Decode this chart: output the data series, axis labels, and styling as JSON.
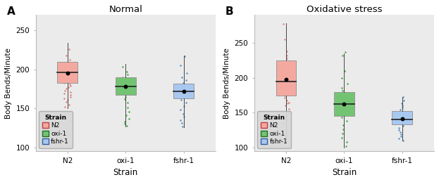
{
  "panel_A": {
    "title": "Normal",
    "xlabel": "Strain",
    "ylabel": "Body Bends/Minute",
    "ylim": [
      95,
      270
    ],
    "yticks": [
      100,
      150,
      200,
      250
    ],
    "strains": [
      "N2",
      "oxi-1",
      "fshr-1"
    ],
    "boxes": [
      {
        "q1": 183,
        "median": 196,
        "q3": 210,
        "whisker_low": 150,
        "whisker_high": 234,
        "mean": 195,
        "color": "#F4A9A0",
        "edge": "#999999"
      },
      {
        "q1": 167,
        "median": 178,
        "q3": 190,
        "whisker_low": 127,
        "whisker_high": 207,
        "mean": 178,
        "color": "#72C472",
        "edge": "#999999"
      },
      {
        "q1": 163,
        "median": 172,
        "q3": 182,
        "whisker_low": 126,
        "whisker_high": 218,
        "mean": 172,
        "color": "#A8C8F0",
        "edge": "#999999"
      }
    ],
    "jitter": [
      {
        "color": "#E07070",
        "points_y": [
          152,
          155,
          158,
          161,
          163,
          165,
          167,
          169,
          171,
          173,
          175,
          177,
          179,
          181,
          183,
          185,
          187,
          189,
          191,
          193,
          195,
          197,
          199,
          201,
          203,
          205,
          208,
          212,
          218,
          226
        ]
      },
      {
        "color": "#28A028",
        "points_y": [
          128,
          130,
          133,
          137,
          141,
          146,
          151,
          157,
          162,
          165,
          168,
          171,
          173,
          175,
          177,
          179,
          181,
          183,
          185,
          187,
          190,
          193,
          197,
          203
        ]
      },
      {
        "color": "#4080C0",
        "points_y": [
          127,
          131,
          135,
          139,
          143,
          148,
          153,
          157,
          161,
          164,
          167,
          169,
          171,
          173,
          175,
          177,
          179,
          181,
          183,
          186,
          190,
          195,
          205,
          217
        ]
      }
    ]
  },
  "panel_B": {
    "title": "Oxidative stress",
    "xlabel": "Strain",
    "ylabel": "Body Bends/Minute",
    "ylim": [
      95,
      290
    ],
    "yticks": [
      100,
      150,
      200,
      250
    ],
    "strains": [
      "N2",
      "oxi-1",
      "fshr-1"
    ],
    "boxes": [
      {
        "q1": 175,
        "median": 195,
        "q3": 225,
        "whisker_low": 113,
        "whisker_high": 278,
        "mean": 198,
        "color": "#F4A9A0",
        "edge": "#999999"
      },
      {
        "q1": 145,
        "median": 162,
        "q3": 180,
        "whisker_low": 100,
        "whisker_high": 235,
        "mean": 162,
        "color": "#72C472",
        "edge": "#999999"
      },
      {
        "q1": 133,
        "median": 140,
        "q3": 152,
        "whisker_low": 110,
        "whisker_high": 173,
        "mean": 141,
        "color": "#A8C8F0",
        "edge": "#999999"
      }
    ],
    "jitter": [
      {
        "color": "#E07070",
        "points_y": [
          135,
          140,
          145,
          150,
          155,
          160,
          163,
          165,
          168,
          172,
          175,
          178,
          180,
          183,
          186,
          189,
          192,
          195,
          198,
          202,
          208,
          215,
          222,
          228,
          232,
          238,
          255,
          277
        ]
      },
      {
        "color": "#28A028",
        "points_y": [
          102,
          108,
          114,
          120,
          126,
          132,
          138,
          143,
          148,
          153,
          158,
          162,
          165,
          168,
          172,
          175,
          178,
          182,
          186,
          192,
          200,
          210,
          232,
          237
        ]
      },
      {
        "color": "#4080C0",
        "points_y": [
          110,
          113,
          116,
          119,
          122,
          125,
          128,
          131,
          134,
          137,
          140,
          143,
          145,
          148,
          151,
          154,
          157,
          160,
          164,
          168,
          173
        ]
      }
    ]
  },
  "legend": {
    "labels": [
      "N2",
      "oxi-1",
      "fshr-1"
    ],
    "face_colors": [
      "#F4A9A0",
      "#72C472",
      "#A8C8F0"
    ],
    "edge_colors": [
      "#C04040",
      "#207020",
      "#3060A0"
    ]
  },
  "fig_bg": "#ffffff",
  "ax_bg": "#ebebeb"
}
